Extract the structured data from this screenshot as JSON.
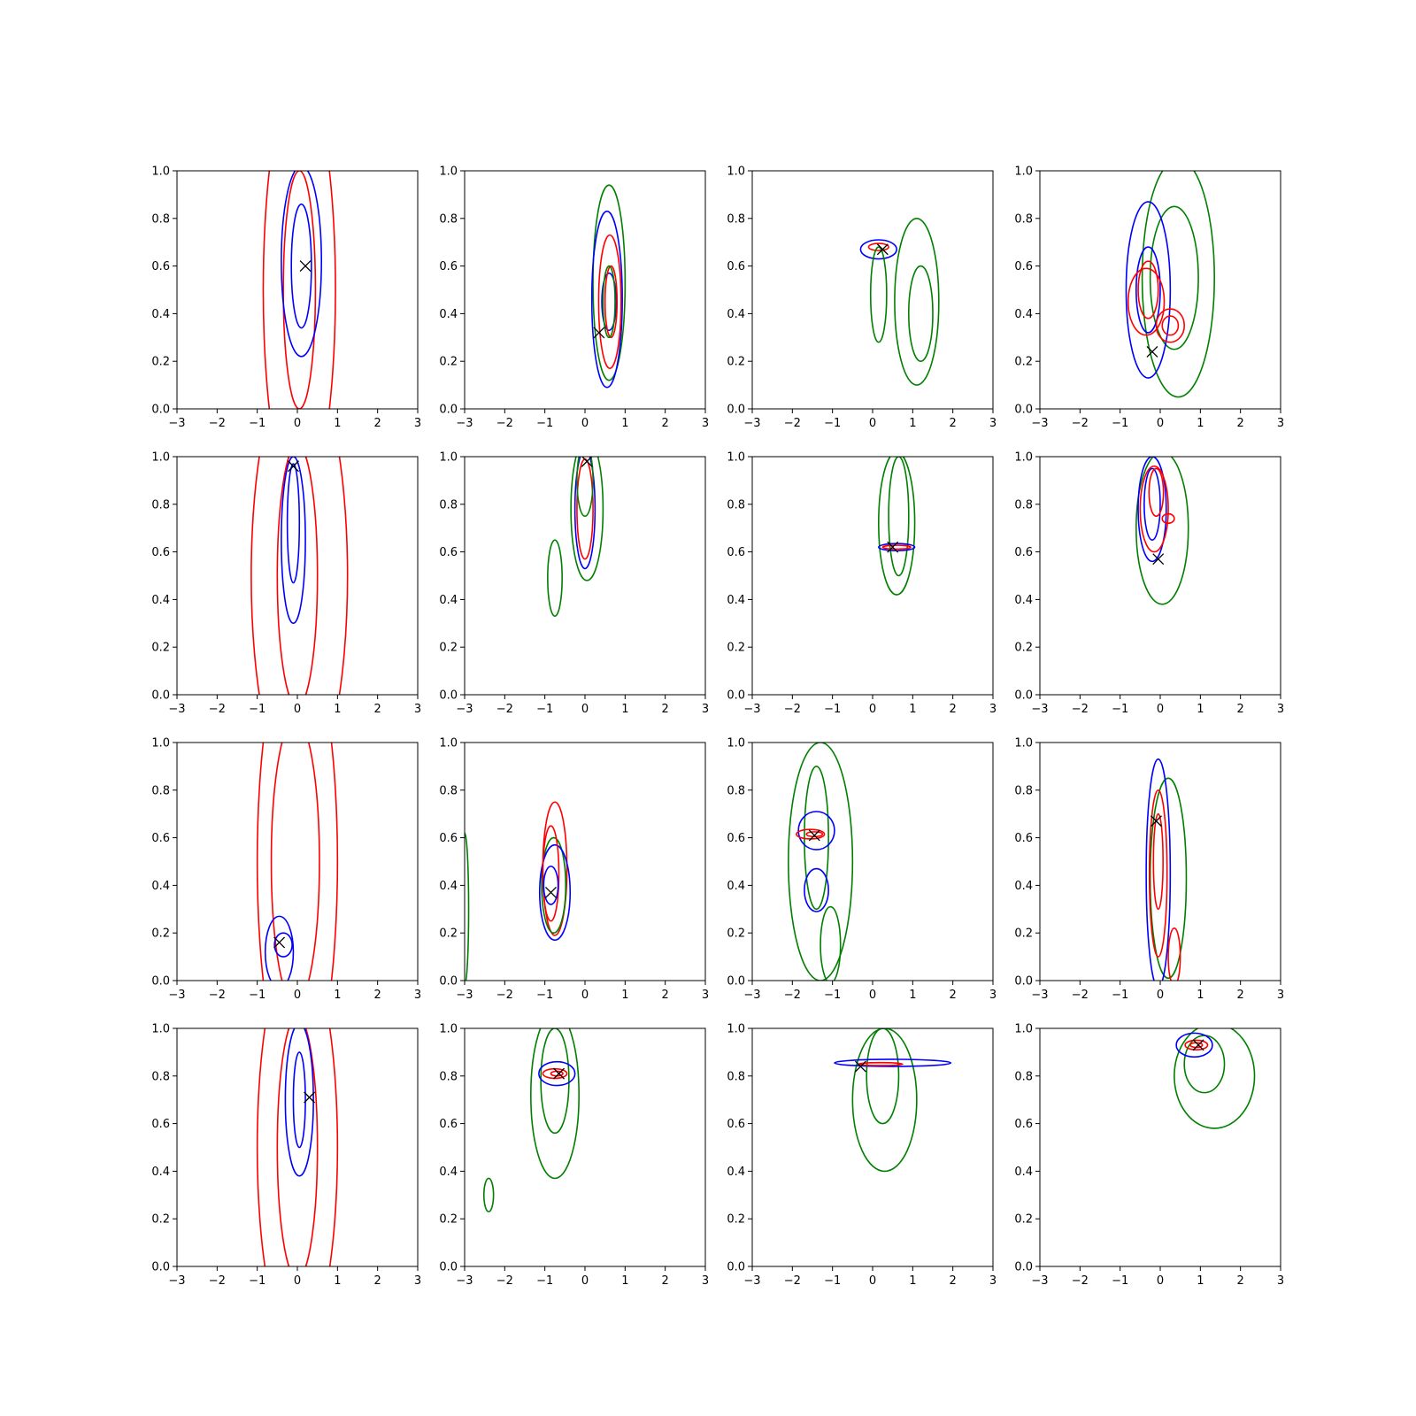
{
  "chart_data": {
    "type": "contour",
    "layout": {
      "rows": 4,
      "cols": 4
    },
    "xlim": [
      -3,
      3
    ],
    "ylim": [
      0,
      1
    ],
    "xticks": [
      "−3",
      "−2",
      "−1",
      "0",
      "1",
      "2",
      "3"
    ],
    "yticks": [
      "0.0",
      "0.2",
      "0.4",
      "0.6",
      "0.8",
      "1.0"
    ],
    "colors": {
      "red": "#ff0000",
      "blue": "#0000ff",
      "green": "#008000",
      "marker": "#000000"
    },
    "panels": [
      {
        "marker": [
          0.2,
          0.6
        ],
        "contours": [
          {
            "color": "red",
            "cx": 0.05,
            "cy": 0.5,
            "rx": 0.9,
            "ry": 0.9
          },
          {
            "color": "red",
            "cx": 0.05,
            "cy": 0.5,
            "rx": 0.4,
            "ry": 0.5
          },
          {
            "color": "blue",
            "cx": 0.1,
            "cy": 0.62,
            "rx": 0.5,
            "ry": 0.4
          },
          {
            "color": "blue",
            "cx": 0.1,
            "cy": 0.6,
            "rx": 0.25,
            "ry": 0.26
          }
        ]
      },
      {
        "marker": [
          0.35,
          0.32
        ],
        "contours": [
          {
            "color": "green",
            "cx": 0.6,
            "cy": 0.53,
            "rx": 0.4,
            "ry": 0.41
          },
          {
            "color": "blue",
            "cx": 0.55,
            "cy": 0.46,
            "rx": 0.38,
            "ry": 0.37
          },
          {
            "color": "red",
            "cx": 0.62,
            "cy": 0.45,
            "rx": 0.28,
            "ry": 0.28
          },
          {
            "color": "blue",
            "cx": 0.6,
            "cy": 0.45,
            "rx": 0.18,
            "ry": 0.12
          },
          {
            "color": "red",
            "cx": 0.65,
            "cy": 0.45,
            "rx": 0.15,
            "ry": 0.15
          },
          {
            "color": "green",
            "cx": 0.6,
            "cy": 0.45,
            "rx": 0.15,
            "ry": 0.15
          }
        ]
      },
      {
        "marker": [
          0.25,
          0.67
        ],
        "contours": [
          {
            "color": "blue",
            "cx": 0.15,
            "cy": 0.67,
            "rx": 0.45,
            "ry": 0.04
          },
          {
            "color": "red",
            "cx": 0.15,
            "cy": 0.68,
            "rx": 0.25,
            "ry": 0.015
          },
          {
            "color": "green",
            "cx": 1.1,
            "cy": 0.45,
            "rx": 0.55,
            "ry": 0.35
          },
          {
            "color": "green",
            "cx": 1.2,
            "cy": 0.4,
            "rx": 0.3,
            "ry": 0.2
          },
          {
            "color": "green",
            "cx": 0.15,
            "cy": 0.48,
            "rx": 0.2,
            "ry": 0.2
          }
        ]
      },
      {
        "marker": [
          -0.2,
          0.24
        ],
        "contours": [
          {
            "color": "green",
            "cx": 0.45,
            "cy": 0.55,
            "rx": 0.9,
            "ry": 0.5
          },
          {
            "color": "green",
            "cx": 0.35,
            "cy": 0.55,
            "rx": 0.6,
            "ry": 0.3
          },
          {
            "color": "blue",
            "cx": -0.3,
            "cy": 0.5,
            "rx": 0.55,
            "ry": 0.37
          },
          {
            "color": "blue",
            "cx": -0.3,
            "cy": 0.5,
            "rx": 0.3,
            "ry": 0.18
          },
          {
            "color": "red",
            "cx": -0.35,
            "cy": 0.45,
            "rx": 0.45,
            "ry": 0.14
          },
          {
            "color": "red",
            "cx": -0.3,
            "cy": 0.5,
            "rx": 0.25,
            "ry": 0.12
          },
          {
            "color": "red",
            "cx": 0.25,
            "cy": 0.35,
            "rx": 0.35,
            "ry": 0.07
          },
          {
            "color": "red",
            "cx": 0.25,
            "cy": 0.35,
            "rx": 0.2,
            "ry": 0.04
          }
        ]
      },
      {
        "marker": [
          -0.1,
          0.96
        ],
        "contours": [
          {
            "color": "red",
            "cx": 0.05,
            "cy": 0.5,
            "rx": 1.2,
            "ry": 0.9
          },
          {
            "color": "red",
            "cx": 0.0,
            "cy": 0.5,
            "rx": 0.5,
            "ry": 0.55
          },
          {
            "color": "blue",
            "cx": -0.1,
            "cy": 0.65,
            "rx": 0.3,
            "ry": 0.35
          },
          {
            "color": "blue",
            "cx": -0.1,
            "cy": 0.72,
            "rx": 0.15,
            "ry": 0.25
          }
        ]
      },
      {
        "marker": [
          0.05,
          0.98
        ],
        "contours": [
          {
            "color": "green",
            "cx": 0.05,
            "cy": 0.78,
            "rx": 0.4,
            "ry": 0.3
          },
          {
            "color": "blue",
            "cx": 0.0,
            "cy": 0.78,
            "rx": 0.25,
            "ry": 0.25
          },
          {
            "color": "red",
            "cx": 0.0,
            "cy": 0.78,
            "rx": 0.2,
            "ry": 0.21
          },
          {
            "color": "green",
            "cx": 0.0,
            "cy": 0.9,
            "rx": 0.2,
            "ry": 0.15
          },
          {
            "color": "green",
            "cx": -0.75,
            "cy": 0.49,
            "rx": 0.18,
            "ry": 0.16
          }
        ]
      },
      {
        "marker": [
          0.5,
          0.62
        ],
        "contours": [
          {
            "color": "green",
            "cx": 0.6,
            "cy": 0.72,
            "rx": 0.45,
            "ry": 0.3
          },
          {
            "color": "green",
            "cx": 0.65,
            "cy": 0.75,
            "rx": 0.25,
            "ry": 0.25
          },
          {
            "color": "blue",
            "cx": 0.6,
            "cy": 0.62,
            "rx": 0.45,
            "ry": 0.015
          },
          {
            "color": "red",
            "cx": 0.6,
            "cy": 0.62,
            "rx": 0.35,
            "ry": 0.008
          }
        ]
      },
      {
        "marker": [
          -0.05,
          0.57
        ],
        "contours": [
          {
            "color": "green",
            "cx": 0.05,
            "cy": 0.7,
            "rx": 0.65,
            "ry": 0.32
          },
          {
            "color": "blue",
            "cx": -0.2,
            "cy": 0.78,
            "rx": 0.35,
            "ry": 0.22
          },
          {
            "color": "red",
            "cx": -0.15,
            "cy": 0.78,
            "rx": 0.35,
            "ry": 0.18
          },
          {
            "color": "blue",
            "cx": -0.2,
            "cy": 0.8,
            "rx": 0.2,
            "ry": 0.15
          },
          {
            "color": "red",
            "cx": -0.1,
            "cy": 0.85,
            "rx": 0.18,
            "ry": 0.1
          },
          {
            "color": "red",
            "cx": 0.2,
            "cy": 0.74,
            "rx": 0.15,
            "ry": 0.02
          }
        ]
      },
      {
        "marker": [
          -0.45,
          0.16
        ],
        "contours": [
          {
            "color": "red",
            "cx": 0.0,
            "cy": 0.5,
            "rx": 1.0,
            "ry": 0.95
          },
          {
            "color": "red",
            "cx": -0.05,
            "cy": 0.5,
            "rx": 0.6,
            "ry": 0.6
          },
          {
            "color": "blue",
            "cx": -0.45,
            "cy": 0.12,
            "rx": 0.35,
            "ry": 0.15
          },
          {
            "color": "blue",
            "cx": -0.35,
            "cy": 0.15,
            "rx": 0.22,
            "ry": 0.05
          }
        ]
      },
      {
        "marker": [
          -0.85,
          0.37
        ],
        "contours": [
          {
            "color": "red",
            "cx": -0.75,
            "cy": 0.47,
            "rx": 0.3,
            "ry": 0.28
          },
          {
            "color": "green",
            "cx": -0.78,
            "cy": 0.4,
            "rx": 0.3,
            "ry": 0.2
          },
          {
            "color": "blue",
            "cx": -0.75,
            "cy": 0.37,
            "rx": 0.38,
            "ry": 0.2
          },
          {
            "color": "red",
            "cx": -0.85,
            "cy": 0.45,
            "rx": 0.2,
            "ry": 0.2
          },
          {
            "color": "blue",
            "cx": -0.85,
            "cy": 0.4,
            "rx": 0.18,
            "ry": 0.08
          },
          {
            "color": "green",
            "cx": -3.0,
            "cy": 0.3,
            "rx": 0.1,
            "ry": 0.32
          }
        ]
      },
      {
        "marker": [
          -1.45,
          0.61
        ],
        "contours": [
          {
            "color": "green",
            "cx": -1.3,
            "cy": 0.5,
            "rx": 0.8,
            "ry": 0.5
          },
          {
            "color": "green",
            "cx": -1.4,
            "cy": 0.6,
            "rx": 0.3,
            "ry": 0.3
          },
          {
            "color": "blue",
            "cx": -1.4,
            "cy": 0.63,
            "rx": 0.45,
            "ry": 0.08
          },
          {
            "color": "blue",
            "cx": -1.4,
            "cy": 0.38,
            "rx": 0.3,
            "ry": 0.09
          },
          {
            "color": "red",
            "cx": -1.55,
            "cy": 0.615,
            "rx": 0.35,
            "ry": 0.02
          },
          {
            "color": "red",
            "cx": -1.45,
            "cy": 0.615,
            "rx": 0.2,
            "ry": 0.01
          },
          {
            "color": "green",
            "cx": -1.05,
            "cy": 0.15,
            "rx": 0.25,
            "ry": 0.16
          }
        ]
      },
      {
        "marker": [
          -0.1,
          0.67
        ],
        "contours": [
          {
            "color": "green",
            "cx": 0.2,
            "cy": 0.43,
            "rx": 0.45,
            "ry": 0.42
          },
          {
            "color": "blue",
            "cx": -0.05,
            "cy": 0.45,
            "rx": 0.3,
            "ry": 0.48
          },
          {
            "color": "red",
            "cx": -0.05,
            "cy": 0.45,
            "rx": 0.22,
            "ry": 0.35
          },
          {
            "color": "red",
            "cx": -0.05,
            "cy": 0.5,
            "rx": 0.12,
            "ry": 0.2
          },
          {
            "color": "red",
            "cx": 0.35,
            "cy": 0.1,
            "rx": 0.15,
            "ry": 0.12
          }
        ]
      },
      {
        "marker": [
          0.3,
          0.71
        ],
        "contours": [
          {
            "color": "red",
            "cx": 0.0,
            "cy": 0.5,
            "rx": 1.0,
            "ry": 0.85
          },
          {
            "color": "red",
            "cx": 0.0,
            "cy": 0.5,
            "rx": 0.5,
            "ry": 0.55
          },
          {
            "color": "blue",
            "cx": 0.05,
            "cy": 0.7,
            "rx": 0.35,
            "ry": 0.32
          },
          {
            "color": "blue",
            "cx": 0.05,
            "cy": 0.7,
            "rx": 0.15,
            "ry": 0.2
          }
        ]
      },
      {
        "marker": [
          -0.65,
          0.81
        ],
        "contours": [
          {
            "color": "green",
            "cx": -0.75,
            "cy": 0.72,
            "rx": 0.6,
            "ry": 0.35
          },
          {
            "color": "green",
            "cx": -0.75,
            "cy": 0.78,
            "rx": 0.35,
            "ry": 0.22
          },
          {
            "color": "blue",
            "cx": -0.7,
            "cy": 0.81,
            "rx": 0.45,
            "ry": 0.05
          },
          {
            "color": "red",
            "cx": -0.75,
            "cy": 0.81,
            "rx": 0.3,
            "ry": 0.02
          },
          {
            "color": "red",
            "cx": -0.7,
            "cy": 0.81,
            "rx": 0.15,
            "ry": 0.01
          },
          {
            "color": "green",
            "cx": -2.4,
            "cy": 0.3,
            "rx": 0.12,
            "ry": 0.07
          }
        ]
      },
      {
        "marker": [
          -0.3,
          0.84
        ],
        "contours": [
          {
            "color": "green",
            "cx": 0.3,
            "cy": 0.7,
            "rx": 0.8,
            "ry": 0.3
          },
          {
            "color": "green",
            "cx": 0.25,
            "cy": 0.8,
            "rx": 0.4,
            "ry": 0.2
          },
          {
            "color": "blue",
            "cx": 0.5,
            "cy": 0.855,
            "rx": 1.45,
            "ry": 0.015
          },
          {
            "color": "red",
            "cx": 0.2,
            "cy": 0.85,
            "rx": 0.55,
            "ry": 0.006
          }
        ]
      },
      {
        "marker": [
          0.95,
          0.93
        ],
        "contours": [
          {
            "color": "green",
            "cx": 1.35,
            "cy": 0.8,
            "rx": 1.0,
            "ry": 0.22
          },
          {
            "color": "green",
            "cx": 1.1,
            "cy": 0.85,
            "rx": 0.5,
            "ry": 0.12
          },
          {
            "color": "blue",
            "cx": 0.85,
            "cy": 0.93,
            "rx": 0.45,
            "ry": 0.05
          },
          {
            "color": "red",
            "cx": 0.9,
            "cy": 0.93,
            "rx": 0.28,
            "ry": 0.02
          },
          {
            "color": "red",
            "cx": 0.9,
            "cy": 0.93,
            "rx": 0.15,
            "ry": 0.01
          }
        ]
      }
    ]
  }
}
